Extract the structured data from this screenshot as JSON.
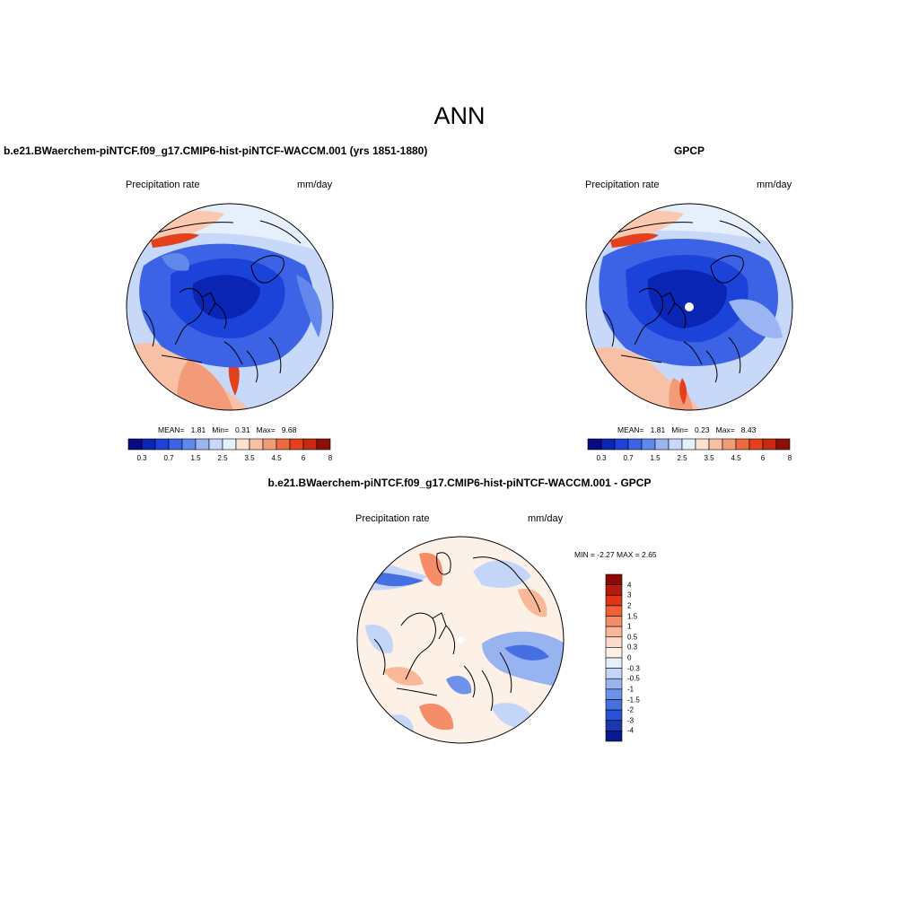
{
  "figure": {
    "season": "ANN",
    "variable_label": "Precipitation rate",
    "units": "mm/day"
  },
  "panels": [
    {
      "id": "model",
      "title": "b.e21.BWaerchem-piNTCF.f09_g17.CMIP6-hist-piNTCF-WACCM.001 (yrs 1851-1880)",
      "variable": "Precipitation rate",
      "units": "mm/day",
      "stats": {
        "mean_label": "MEAN=",
        "mean": "1.81",
        "min_label": "Min=",
        "min": "0.31",
        "max_label": "Max=",
        "max": "9.68"
      }
    },
    {
      "id": "obs",
      "title": "GPCP",
      "variable": "Precipitation rate",
      "units": "mm/day",
      "stats": {
        "mean_label": "MEAN=",
        "mean": "1.81",
        "min_label": "Min=",
        "min": "0.23",
        "max_label": "Max=",
        "max": "8.43"
      }
    },
    {
      "id": "diff",
      "title": "b.e21.BWaerchem-piNTCF.f09_g17.CMIP6-hist-piNTCF-WACCM.001 - GPCP",
      "variable": "Precipitation rate",
      "units": "mm/day",
      "stats_text": "MIN =  -2.27 MAX =   2.65"
    }
  ],
  "colorbar_main": {
    "colors": [
      "#0a0a80",
      "#0a24b4",
      "#1c43d9",
      "#3c63e6",
      "#6388ec",
      "#9bb4f2",
      "#c8d8f8",
      "#e6f0fc",
      "#fde2d2",
      "#f8c0a4",
      "#f39a78",
      "#ec6a42",
      "#e3401e",
      "#c62a12",
      "#8c1008"
    ],
    "tick_labels": [
      "0.3",
      "0.7",
      "1.5",
      "2.5",
      "3.5",
      "4.5",
      "6",
      "8"
    ]
  },
  "colorbar_diff": {
    "colors_top_to_bottom": [
      "#8c0a06",
      "#b41a0e",
      "#de3416",
      "#f06236",
      "#f58e68",
      "#fbb898",
      "#fcdcc8",
      "#fdf0e6",
      "#e6f0fc",
      "#c4d6f8",
      "#97b4f0",
      "#6e92ea",
      "#4670e2",
      "#2752d8",
      "#1a36b0",
      "#0a1a8c"
    ],
    "tick_labels": [
      "4",
      "3",
      "2",
      "1.5",
      "1",
      "0.5",
      "0.3",
      "0",
      "-0.3",
      "-0.5",
      "-1",
      "-1.5",
      "-2",
      "-3",
      "-4"
    ]
  }
}
